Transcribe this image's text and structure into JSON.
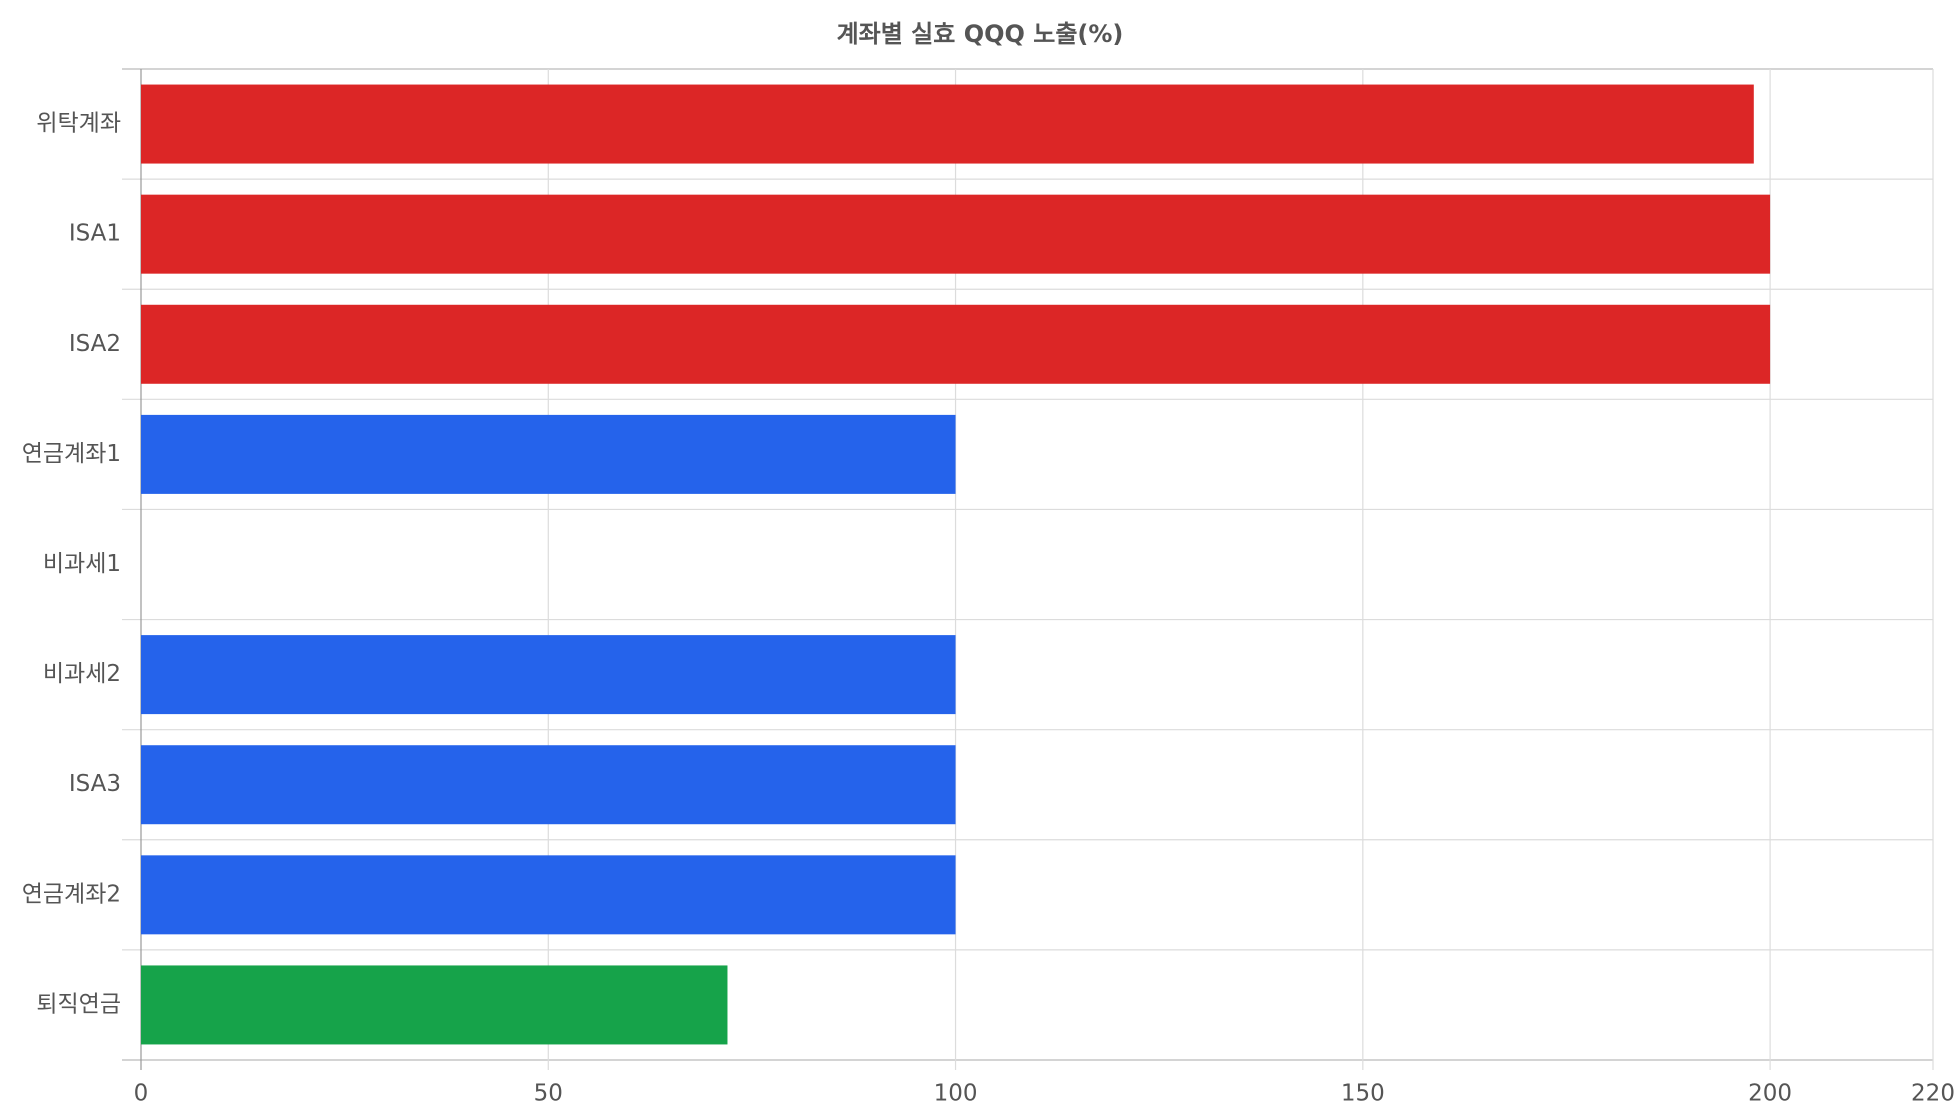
{
  "chart_data": {
    "type": "hbar",
    "title": "계좌별 실효 QQQ 노출(%)",
    "categories": [
      "위탁계좌",
      "ISA1",
      "ISA2",
      "연금계좌1",
      "비과세1",
      "비과세2",
      "ISA3",
      "연금계좌2",
      "퇴직연금"
    ],
    "values": [
      198,
      200,
      200,
      100,
      0,
      100,
      100,
      100,
      72
    ],
    "colors": [
      "#dc2626",
      "#dc2626",
      "#dc2626",
      "#2563eb",
      "#2563eb",
      "#2563eb",
      "#2563eb",
      "#2563eb",
      "#16a34a"
    ],
    "xlim": [
      0,
      220
    ],
    "xticks": [
      0,
      50,
      100,
      150,
      200,
      220
    ],
    "grid": true
  }
}
